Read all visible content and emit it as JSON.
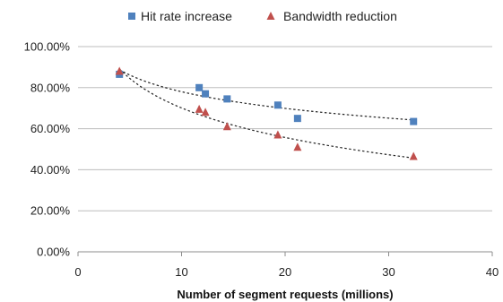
{
  "chart_data": {
    "type": "scatter",
    "title": "",
    "xlabel": "Number of segment requests (millions)",
    "ylabel": "",
    "xlim": [
      0,
      40
    ],
    "ylim": [
      0,
      100
    ],
    "x_ticks": [
      0,
      10,
      20,
      30,
      40
    ],
    "x_tick_labels": [
      "0",
      "10",
      "20",
      "30",
      "40"
    ],
    "y_ticks": [
      0,
      20,
      40,
      60,
      80,
      100
    ],
    "y_tick_labels": [
      "0.00%",
      "20.00%",
      "40.00%",
      "60.00%",
      "80.00%",
      "100.00%"
    ],
    "grid": "horizontal",
    "legend": "top",
    "trendline": "logarithmic",
    "series": [
      {
        "name": "Hit rate increase",
        "marker": "square",
        "color": "#4f81bd",
        "points": [
          {
            "x": 4.0,
            "y": 86.5
          },
          {
            "x": 11.7,
            "y": 80.0
          },
          {
            "x": 12.3,
            "y": 77.0
          },
          {
            "x": 14.4,
            "y": 74.5
          },
          {
            "x": 19.3,
            "y": 71.5
          },
          {
            "x": 21.2,
            "y": 65.0
          },
          {
            "x": 32.4,
            "y": 63.5
          }
        ]
      },
      {
        "name": "Bandwidth reduction",
        "marker": "triangle",
        "color": "#c0504d",
        "points": [
          {
            "x": 4.0,
            "y": 88.0
          },
          {
            "x": 11.7,
            "y": 69.5
          },
          {
            "x": 12.3,
            "y": 68.0
          },
          {
            "x": 14.4,
            "y": 61.0
          },
          {
            "x": 19.3,
            "y": 57.0
          },
          {
            "x": 21.2,
            "y": 51.0
          },
          {
            "x": 32.4,
            "y": 46.5
          }
        ]
      }
    ]
  }
}
